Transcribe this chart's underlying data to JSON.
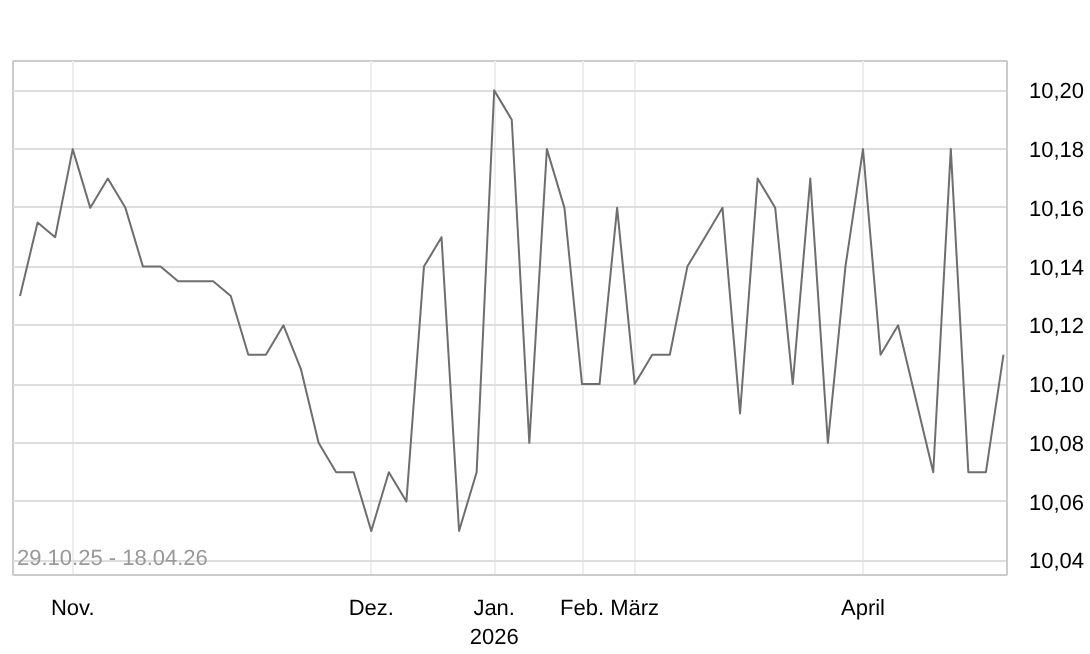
{
  "chart_data": {
    "type": "line",
    "categories": [
      null,
      null,
      null,
      "Nov.",
      null,
      null,
      null,
      null,
      null,
      null,
      null,
      null,
      null,
      null,
      null,
      null,
      null,
      null,
      null,
      null,
      "Dez.",
      null,
      null,
      null,
      null,
      null,
      null,
      "Jan.\n2026",
      null,
      null,
      null,
      null,
      "Feb.",
      null,
      null,
      "März",
      null,
      null,
      null,
      null,
      null,
      null,
      null,
      null,
      null,
      null,
      null,
      null,
      "April",
      null,
      null,
      null,
      null,
      null,
      null,
      null,
      null
    ],
    "series": [
      {
        "color": "#6e6e6e",
        "values": [
          10.13,
          10.155,
          10.15,
          10.18,
          10.16,
          10.17,
          10.16,
          10.14,
          10.14,
          10.135,
          10.135,
          10.135,
          10.13,
          10.11,
          10.11,
          10.12,
          10.105,
          10.08,
          10.07,
          10.07,
          10.05,
          10.07,
          10.06,
          10.14,
          10.15,
          10.05,
          10.07,
          10.2,
          10.19,
          10.08,
          10.18,
          10.16,
          10.1,
          10.1,
          10.16,
          10.1,
          10.11,
          10.11,
          10.14,
          10.15,
          10.16,
          10.09,
          10.17,
          10.16,
          10.1,
          10.17,
          10.08,
          10.14,
          10.18,
          10.11,
          10.12,
          10.095,
          10.07,
          10.18,
          10.07,
          10.07,
          10.11
        ]
      }
    ],
    "ylim": [
      10.035,
      10.21
    ],
    "yticks": [
      {
        "value": 10.04,
        "label": "10,04"
      },
      {
        "value": 10.06,
        "label": "10,06"
      },
      {
        "value": 10.08,
        "label": "10,08"
      },
      {
        "value": 10.1,
        "label": "10,10"
      },
      {
        "value": 10.12,
        "label": "10,12"
      },
      {
        "value": 10.14,
        "label": "10,14"
      },
      {
        "value": 10.16,
        "label": "10,16"
      },
      {
        "value": 10.18,
        "label": "10,18"
      },
      {
        "value": 10.2,
        "label": "10,20"
      }
    ],
    "grid": true,
    "marker": "none",
    "line_style": "solid",
    "annotations": [
      "29.10.25 - 18.04.26"
    ]
  }
}
